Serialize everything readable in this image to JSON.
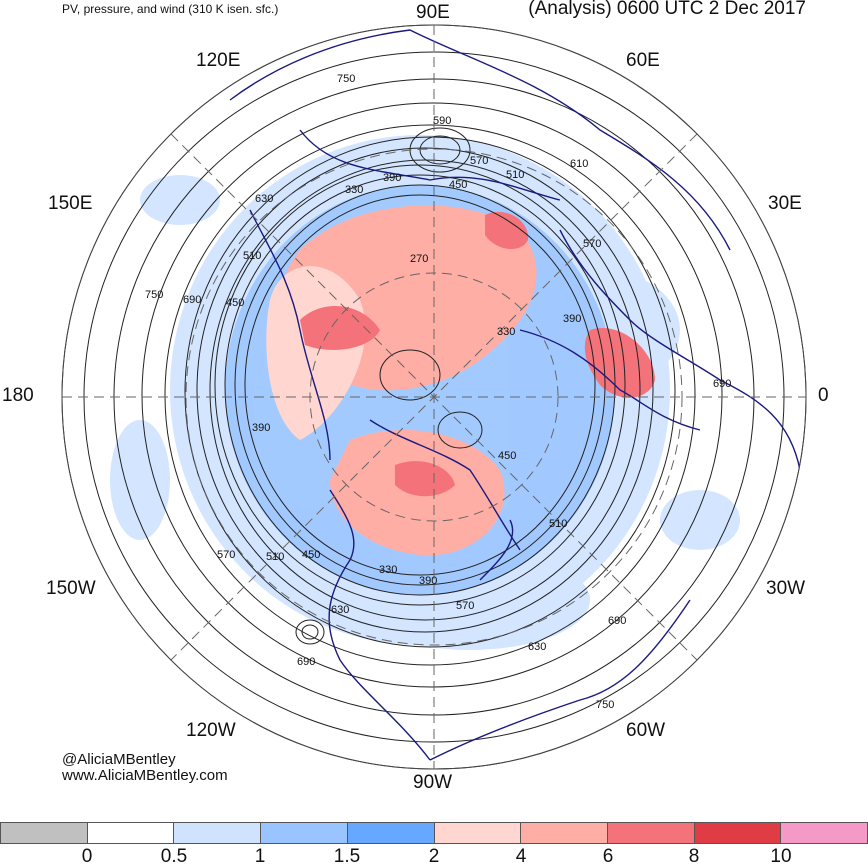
{
  "header": {
    "left_title": "PV, pressure, and wind (310 K isen. sfc.)",
    "right_title": "(Analysis) 0600 UTC 2 Dec 2017"
  },
  "longitude_labels": {
    "e90": "90E",
    "e60": "60E",
    "e120": "120E",
    "e150": "150E",
    "e30": "30E",
    "lon180": "180",
    "lon0": "0",
    "w150": "150W",
    "w30": "30W",
    "w120": "120W",
    "w60": "60W",
    "w90": "90W"
  },
  "contour_labels": [
    {
      "id": "c750a",
      "text": "750"
    },
    {
      "id": "c590",
      "text": "590"
    },
    {
      "id": "c570a",
      "text": "570"
    },
    {
      "id": "c610",
      "text": "610"
    },
    {
      "id": "c330a",
      "text": "330"
    },
    {
      "id": "c390a",
      "text": "390"
    },
    {
      "id": "c450a",
      "text": "450"
    },
    {
      "id": "c510a",
      "text": "510"
    },
    {
      "id": "c630a",
      "text": "630"
    },
    {
      "id": "c570b",
      "text": "570"
    },
    {
      "id": "c510b",
      "text": "510"
    },
    {
      "id": "c270",
      "text": "270"
    },
    {
      "id": "c750b",
      "text": "750"
    },
    {
      "id": "c690a",
      "text": "690"
    },
    {
      "id": "c450b",
      "text": "450"
    },
    {
      "id": "c390b",
      "text": "390"
    },
    {
      "id": "c330b",
      "text": "330"
    },
    {
      "id": "c390c",
      "text": "390"
    },
    {
      "id": "c690b",
      "text": "690"
    },
    {
      "id": "c450c",
      "text": "450"
    },
    {
      "id": "c510c",
      "text": "510"
    },
    {
      "id": "c570c",
      "text": "570"
    },
    {
      "id": "c510d",
      "text": "510"
    },
    {
      "id": "c450d",
      "text": "450"
    },
    {
      "id": "c330c",
      "text": "330"
    },
    {
      "id": "c390d",
      "text": "390"
    },
    {
      "id": "c570d",
      "text": "570"
    },
    {
      "id": "c630b",
      "text": "630"
    },
    {
      "id": "c690c",
      "text": "690"
    },
    {
      "id": "c630c",
      "text": "630"
    },
    {
      "id": "c690d",
      "text": "690"
    },
    {
      "id": "c750c",
      "text": "750"
    }
  ],
  "credit": {
    "handle": "@AliciaMBentley",
    "site": "www.AliciaMBentley.com"
  },
  "colorbar": {
    "colors": [
      "#c0c0c0",
      "#ffffff",
      "#cfe3ff",
      "#99c4ff",
      "#66a8ff",
      "#ffd6d0",
      "#ffaea6",
      "#f4737a",
      "#e03c45",
      "#f59ac6"
    ],
    "ticks": [
      "0",
      "0.5",
      "1",
      "1.5",
      "2",
      "4",
      "6",
      "8",
      "10"
    ]
  }
}
